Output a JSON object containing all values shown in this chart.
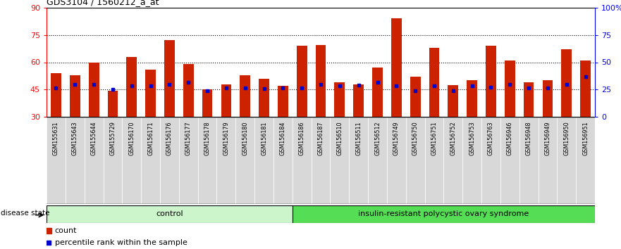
{
  "title": "GDS3104 / 1560212_a_at",
  "samples": [
    "GSM155631",
    "GSM155643",
    "GSM155644",
    "GSM155729",
    "GSM156170",
    "GSM156171",
    "GSM156176",
    "GSM156177",
    "GSM156178",
    "GSM156179",
    "GSM156180",
    "GSM156181",
    "GSM156184",
    "GSM156186",
    "GSM156187",
    "GSM156510",
    "GSM156511",
    "GSM156512",
    "GSM156749",
    "GSM156750",
    "GSM156751",
    "GSM156752",
    "GSM156753",
    "GSM156763",
    "GSM156946",
    "GSM156948",
    "GSM156949",
    "GSM156950",
    "GSM156951"
  ],
  "count_values": [
    54,
    53,
    60,
    44.5,
    63,
    56,
    72,
    59,
    45,
    48,
    53,
    51,
    47,
    69,
    69.5,
    49,
    48,
    57,
    84,
    52,
    68,
    47.5,
    50,
    69,
    61,
    49,
    50,
    67,
    61
  ],
  "percentile_values": [
    46,
    48,
    48,
    45,
    47,
    47,
    48,
    49,
    44.5,
    46,
    46,
    45.5,
    46,
    46,
    48,
    47,
    47.5,
    49,
    47,
    44.5,
    47,
    44.5,
    47,
    46.5,
    48,
    46,
    46,
    48,
    52
  ],
  "group_label_text": "disease state",
  "group_labels": [
    "control",
    "insulin-resistant polycystic ovary syndrome"
  ],
  "group_sizes": [
    13,
    16
  ],
  "control_color": "#ccf5cc",
  "pcos_color": "#55dd55",
  "bar_color": "#cc2200",
  "percentile_color": "#0000cc",
  "ylim_left": [
    30,
    90
  ],
  "ylim_right": [
    0,
    100
  ],
  "yticks_left": [
    30,
    45,
    60,
    75,
    90
  ],
  "yticks_right": [
    0,
    25,
    50,
    75,
    100
  ],
  "ytick_labels_right": [
    "0",
    "25",
    "50",
    "75",
    "100%"
  ],
  "grid_values": [
    45,
    60,
    75
  ],
  "bar_width": 0.55,
  "tick_bg_color": "#d8d8d8",
  "legend_count_label": "count",
  "legend_pct_label": "percentile rank within the sample"
}
